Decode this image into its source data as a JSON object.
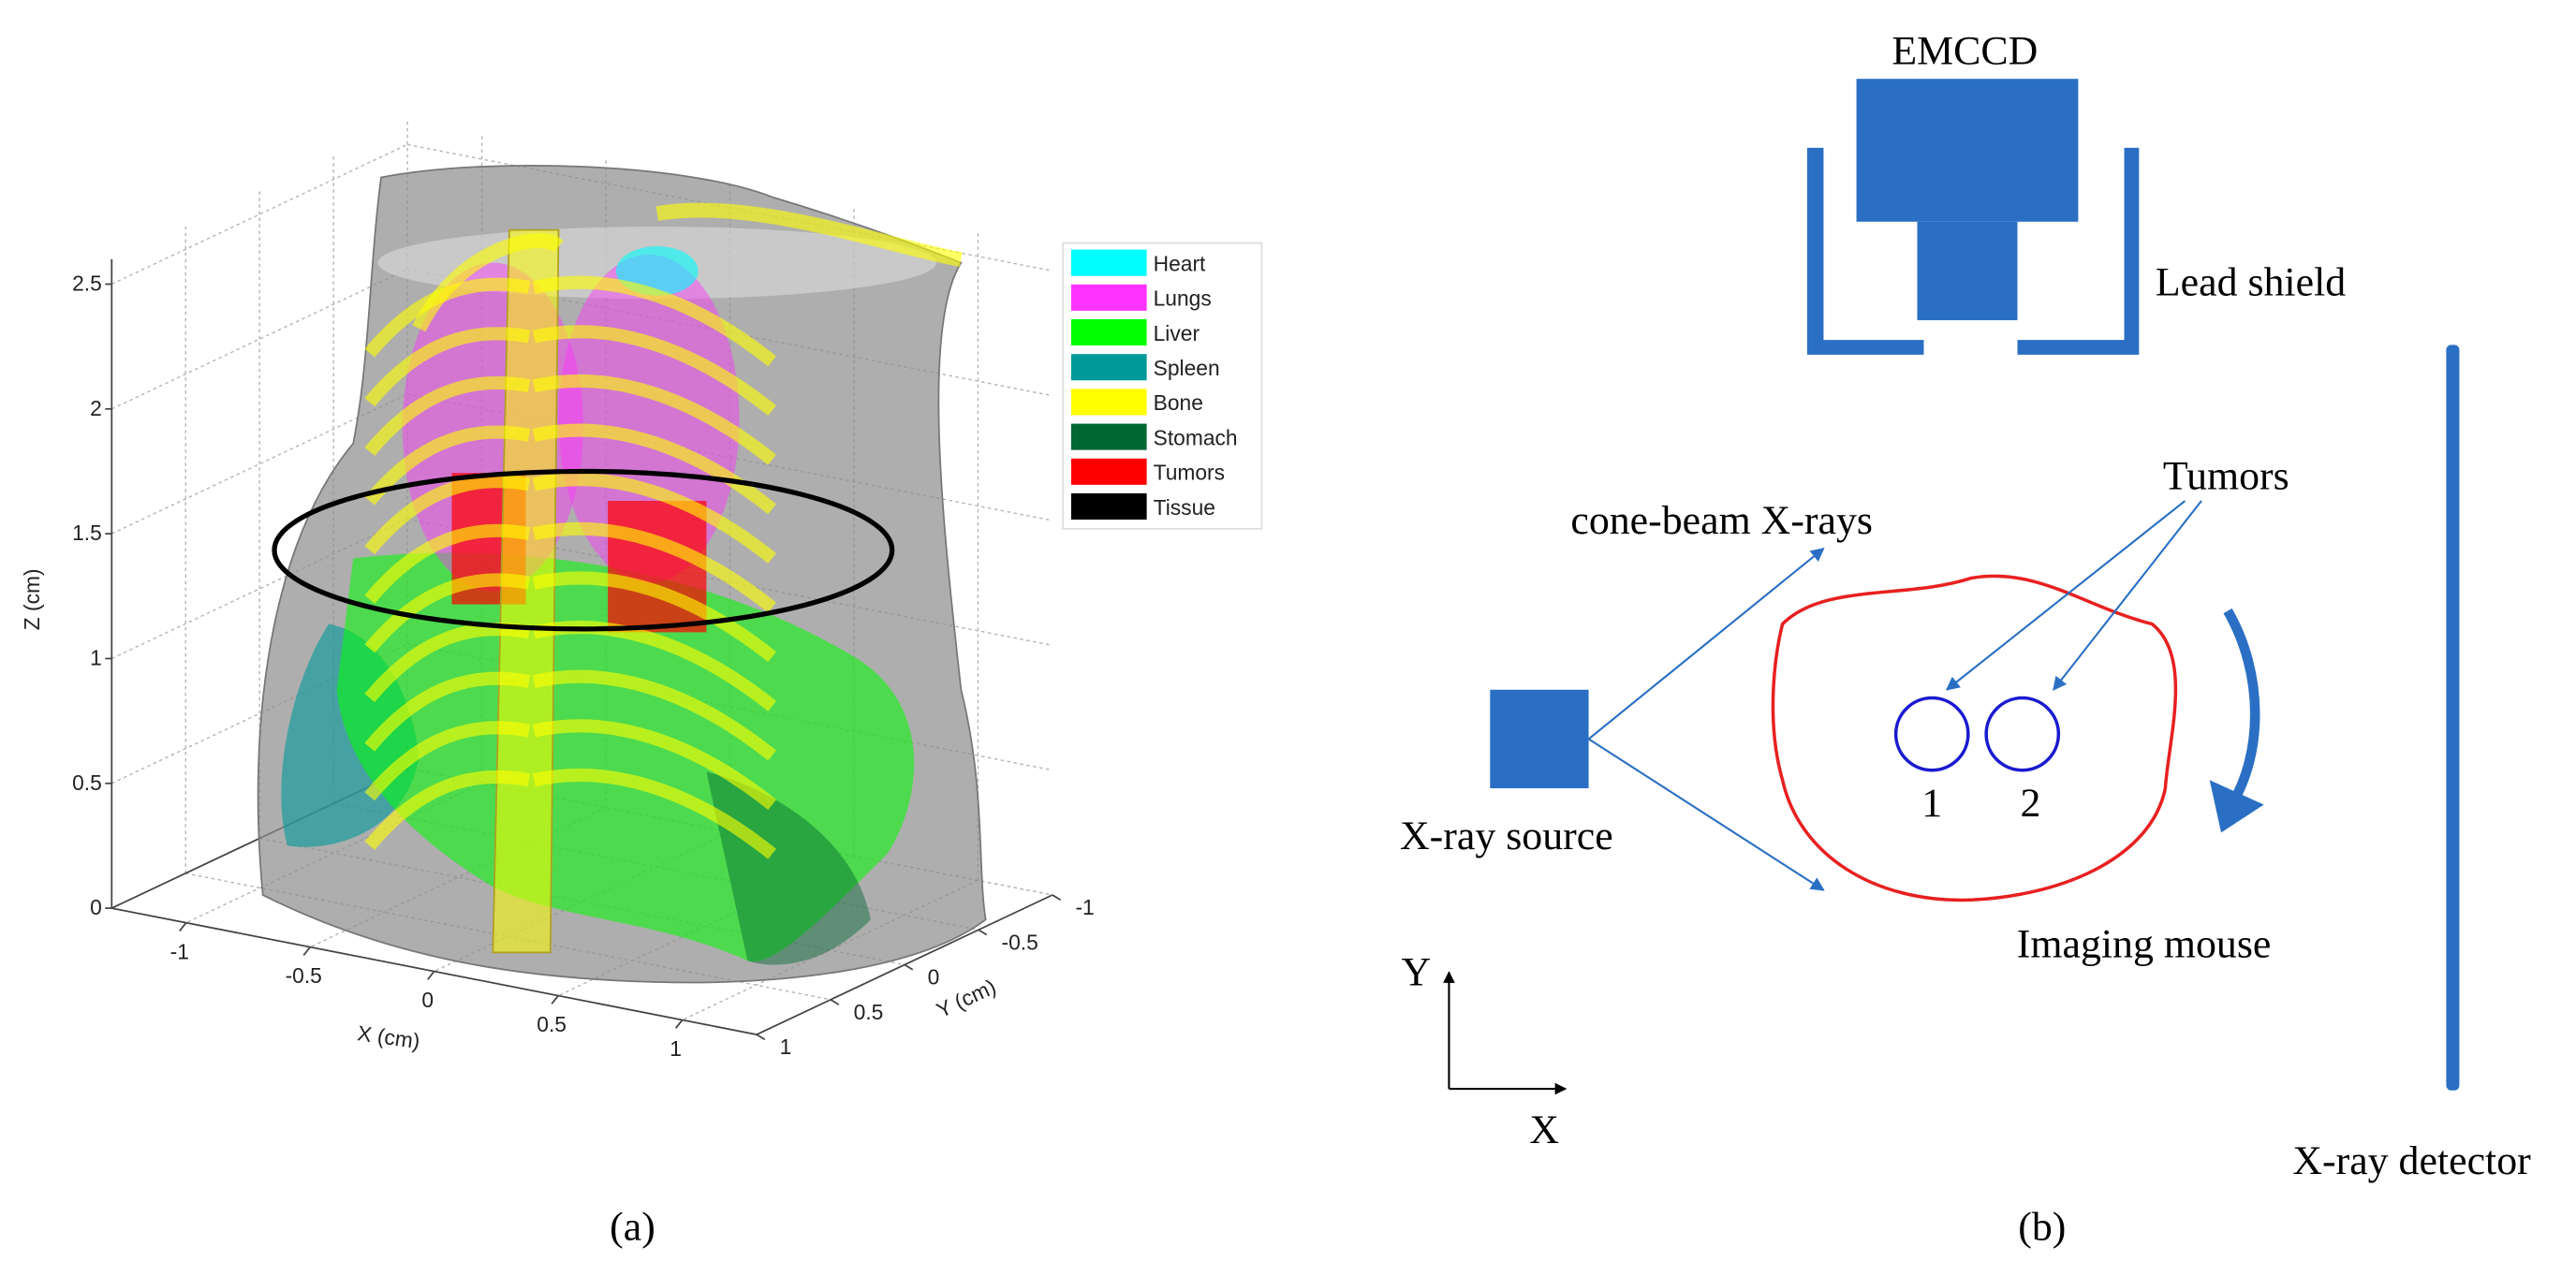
{
  "panel_a": {
    "z_axis": {
      "label": "Z (cm)",
      "ticks": [
        "0",
        "0.5",
        "1",
        "1.5",
        "2",
        "2.5"
      ]
    },
    "x_axis": {
      "label": "X (cm)",
      "ticks": [
        "-1",
        "-0.5",
        "0",
        "0.5",
        "1"
      ]
    },
    "y_axis": {
      "label": "Y (cm)",
      "ticks": [
        "-1",
        "-0.5",
        "0",
        "0.5",
        "1"
      ]
    },
    "legend": [
      {
        "name": "Heart",
        "color": "#00ffff"
      },
      {
        "name": "Lungs",
        "color": "#ff33ff"
      },
      {
        "name": "Liver",
        "color": "#00ff00"
      },
      {
        "name": "Spleen",
        "color": "#009999"
      },
      {
        "name": "Bone",
        "color": "#ffff00"
      },
      {
        "name": "Stomach",
        "color": "#006633"
      },
      {
        "name": "Tumors",
        "color": "#ff0000"
      },
      {
        "name": "Tissue",
        "color": "#000000"
      }
    ],
    "caption": "(a)"
  },
  "panel_b": {
    "camera": "EMCCD",
    "shield": "Lead shield",
    "detector": "X-ray detector",
    "source": "X-ray source",
    "beam": "cone-beam X-rays",
    "tumors": "Tumors",
    "tumor_ids": [
      "1",
      "2"
    ],
    "mouse": "Imaging mouse",
    "axis_y": "Y",
    "axis_x": "X",
    "caption": "(b)"
  }
}
